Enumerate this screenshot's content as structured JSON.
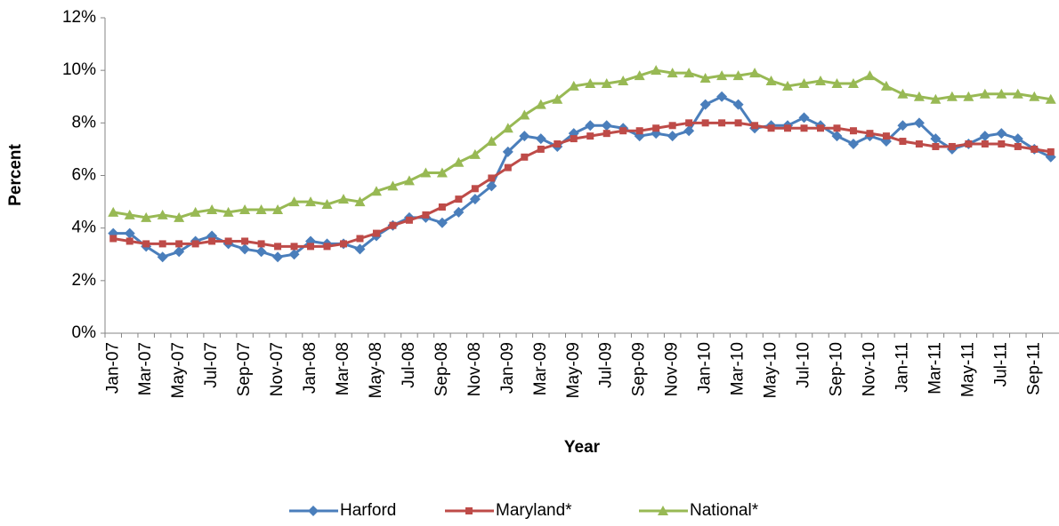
{
  "chart_data": {
    "type": "line",
    "y_label": "Percent",
    "x_label": "Year",
    "categories": [
      "Jan-07",
      null,
      "Mar-07",
      null,
      "May-07",
      null,
      "Jul-07",
      null,
      "Sep-07",
      null,
      "Nov-07",
      null,
      "Jan-08",
      null,
      "Mar-08",
      null,
      "May-08",
      null,
      "Jul-08",
      null,
      "Sep-08",
      null,
      "Nov-08",
      null,
      "Jan-09",
      null,
      "Mar-09",
      null,
      "May-09",
      null,
      "Jul-09",
      null,
      "Sep-09",
      null,
      "Nov-09",
      null,
      "Jan-10",
      null,
      "Mar-10",
      null,
      "May-10",
      null,
      "Jul-10",
      null,
      "Sep-10",
      null,
      "Nov-10",
      null,
      "Jan-11",
      null,
      "Mar-11",
      null,
      "May-11",
      null,
      "Jul-11",
      null,
      "Sep-11",
      null
    ],
    "series": [
      {
        "name": "Harford",
        "color": "#4a7ebb",
        "marker": "diamond",
        "values": [
          3.8,
          3.8,
          3.3,
          2.9,
          3.1,
          3.5,
          3.7,
          3.4,
          3.2,
          3.1,
          2.9,
          3.0,
          3.5,
          3.4,
          3.4,
          3.2,
          3.7,
          4.1,
          4.4,
          4.4,
          4.2,
          4.6,
          5.1,
          5.6,
          6.9,
          7.5,
          7.4,
          7.1,
          7.6,
          7.9,
          7.9,
          7.8,
          7.5,
          7.6,
          7.5,
          7.7,
          8.7,
          9.0,
          8.7,
          7.8,
          7.9,
          7.9,
          8.2,
          7.9,
          7.5,
          7.2,
          7.5,
          7.3,
          7.9,
          8.0,
          7.4,
          7.0,
          7.2,
          7.5,
          7.6,
          7.4,
          7.0,
          6.7
        ]
      },
      {
        "name": "Maryland*",
        "color": "#be4b48",
        "marker": "square",
        "values": [
          3.6,
          3.5,
          3.4,
          3.4,
          3.4,
          3.4,
          3.5,
          3.5,
          3.5,
          3.4,
          3.3,
          3.3,
          3.3,
          3.3,
          3.4,
          3.6,
          3.8,
          4.1,
          4.3,
          4.5,
          4.8,
          5.1,
          5.5,
          5.9,
          6.3,
          6.7,
          7.0,
          7.2,
          7.4,
          7.5,
          7.6,
          7.7,
          7.7,
          7.8,
          7.9,
          8.0,
          8.0,
          8.0,
          8.0,
          7.9,
          7.8,
          7.8,
          7.8,
          7.8,
          7.8,
          7.7,
          7.6,
          7.5,
          7.3,
          7.2,
          7.1,
          7.1,
          7.2,
          7.2,
          7.2,
          7.1,
          7.0,
          6.9
        ]
      },
      {
        "name": "National*",
        "color": "#98b954",
        "marker": "triangle",
        "values": [
          4.6,
          4.5,
          4.4,
          4.5,
          4.4,
          4.6,
          4.7,
          4.6,
          4.7,
          4.7,
          4.7,
          5.0,
          5.0,
          4.9,
          5.1,
          5.0,
          5.4,
          5.6,
          5.8,
          6.1,
          6.1,
          6.5,
          6.8,
          7.3,
          7.8,
          8.3,
          8.7,
          8.9,
          9.4,
          9.5,
          9.5,
          9.6,
          9.8,
          10.0,
          9.9,
          9.9,
          9.7,
          9.8,
          9.8,
          9.9,
          9.6,
          9.4,
          9.5,
          9.6,
          9.5,
          9.5,
          9.8,
          9.4,
          9.1,
          9.0,
          8.9,
          9.0,
          9.0,
          9.1,
          9.1,
          9.1,
          9.0,
          8.9
        ]
      }
    ],
    "ylim": [
      0,
      12
    ],
    "yticks": [
      {
        "value": 0,
        "label": "0%"
      },
      {
        "value": 2,
        "label": "2%"
      },
      {
        "value": 4,
        "label": "4%"
      },
      {
        "value": 6,
        "label": "6%"
      },
      {
        "value": 8,
        "label": "8%"
      },
      {
        "value": 10,
        "label": "10%"
      },
      {
        "value": 12,
        "label": "12%"
      }
    ],
    "grid": false,
    "legend": "bottom"
  }
}
